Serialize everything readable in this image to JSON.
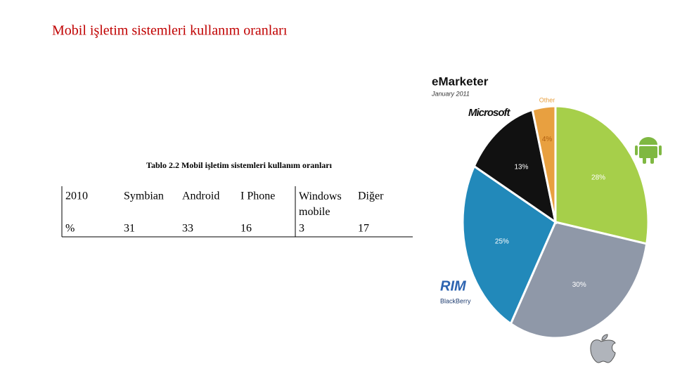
{
  "title": "Mobil işletim sistemleri kullanım oranları",
  "table": {
    "caption": "Tablo 2.2 Mobil işletim sistemleri kullanım oranları",
    "rows": [
      [
        "2010",
        "Symbian",
        "Android",
        "I Phone",
        "Windows mobile",
        "Diğer"
      ],
      [
        "%",
        "31",
        "33",
        "16",
        "3",
        "17"
      ]
    ]
  },
  "chart_data": {
    "type": "pie",
    "title": "eMarketer",
    "subtitle": "January 2011",
    "categories": [
      null,
      null,
      "RIM",
      "Microsoft",
      "Other"
    ],
    "values": [
      28,
      30,
      25,
      13,
      4
    ],
    "value_labels": [
      "28%",
      "30%",
      "25%",
      "13%",
      "4%"
    ],
    "colors": [
      "#a6cf4a",
      "#8f98a8",
      "#2289ba",
      "#111111",
      "#e8a040"
    ],
    "annotations": [
      "BlackBerry"
    ]
  }
}
